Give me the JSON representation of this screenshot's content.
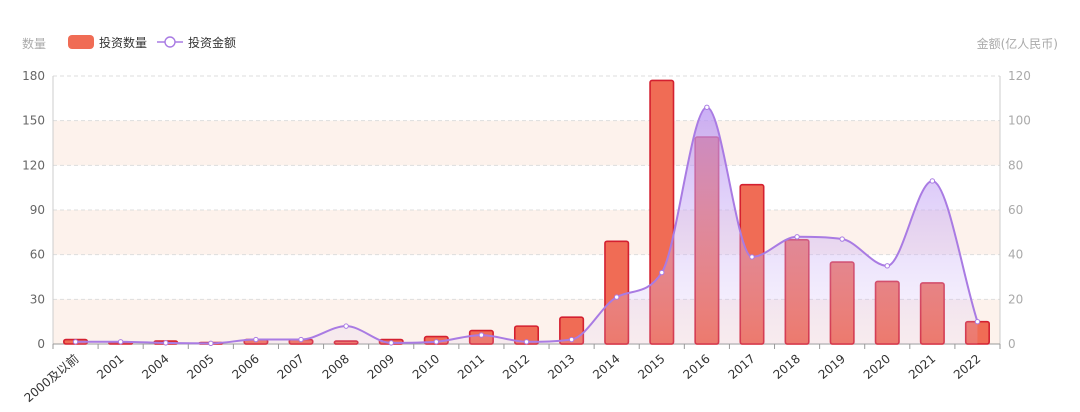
{
  "chart_data": {
    "type": "bar",
    "categories": [
      "2000及以前",
      "2001",
      "2004",
      "2005",
      "2006",
      "2007",
      "2008",
      "2009",
      "2010",
      "2011",
      "2012",
      "2013",
      "2014",
      "2015",
      "2016",
      "2017",
      "2018",
      "2019",
      "2020",
      "2021",
      "2022"
    ],
    "series": [
      {
        "name": "投资数量",
        "type": "bar",
        "axis": "left",
        "values": [
          3,
          1,
          2,
          1,
          3,
          3,
          2,
          3,
          5,
          9,
          12,
          18,
          69,
          177,
          139,
          107,
          70,
          55,
          42,
          41,
          15
        ]
      },
      {
        "name": "投资金额",
        "type": "line",
        "axis": "right",
        "smooth": true,
        "area": true,
        "values": [
          1,
          1,
          0.5,
          0.3,
          2,
          2,
          8,
          0.5,
          1,
          4,
          1,
          2,
          21,
          32,
          106,
          39,
          48,
          47,
          35,
          73,
          10
        ]
      }
    ],
    "ylabel_left": "数量",
    "ylabel_right": "金额(亿人民币)",
    "ylim_left": [
      0,
      180
    ],
    "ylim_right": [
      0,
      120
    ],
    "yticks_left": [
      0,
      30,
      60,
      90,
      120,
      150,
      180
    ],
    "yticks_right": [
      0,
      20,
      40,
      60,
      80,
      100,
      120
    ],
    "legend_position": "top-left",
    "grid": true,
    "bands": true,
    "colors": {
      "bar_fill": "#f06c55",
      "bar_stroke": "#d42030",
      "line": "#a97be3",
      "area": "#bfa2f4",
      "band": "#fdf2ec",
      "grid": "#dddddd"
    }
  }
}
